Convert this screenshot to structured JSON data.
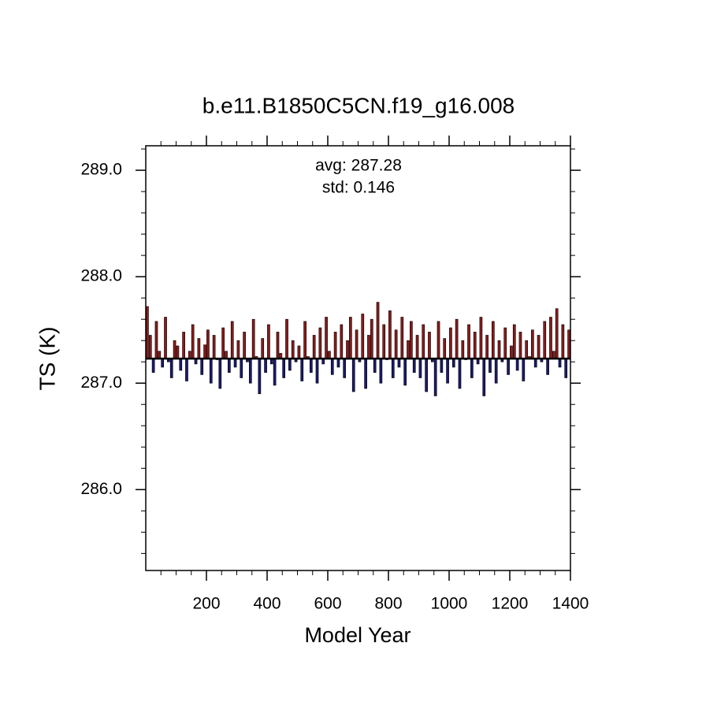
{
  "chart_data": {
    "type": "bar",
    "title": "b.e11.B1850C5CN.f19_g16.008",
    "annotations": [
      "avg: 287.28",
      "std:  0.146"
    ],
    "x_label": "Model Year",
    "y_label": "TS (K)",
    "baseline": 287.23,
    "above_color": "#8b1a1a",
    "below_color": "#1a1a6e",
    "xlim": [
      0,
      1400
    ],
    "xticks": [
      200,
      400,
      600,
      800,
      1000,
      1200,
      1400
    ],
    "xminorticks": [
      50,
      100,
      150,
      250,
      300,
      350,
      450,
      500,
      550,
      650,
      700,
      750,
      850,
      900,
      950,
      1050,
      1100,
      1150,
      1250,
      1300,
      1350
    ],
    "ylim": [
      285.24,
      289.23
    ],
    "yticks": [
      {
        "value": 286,
        "label": "286.0"
      },
      {
        "value": 287,
        "label": "287.0"
      },
      {
        "value": 288,
        "label": "288.0"
      },
      {
        "value": 289,
        "label": "289.0"
      }
    ],
    "yminorticks": [
      285.4,
      285.6,
      285.8,
      286.2,
      286.4,
      286.6,
      286.8,
      287.2,
      287.4,
      287.6,
      287.8,
      288.2,
      288.4,
      288.6,
      288.8,
      289.2
    ],
    "x": [
      5,
      15,
      25,
      35,
      45,
      55,
      65,
      75,
      85,
      95,
      105,
      115,
      125,
      135,
      145,
      155,
      165,
      175,
      185,
      195,
      205,
      215,
      225,
      235,
      245,
      255,
      265,
      275,
      285,
      295,
      305,
      315,
      325,
      335,
      345,
      355,
      365,
      375,
      385,
      395,
      405,
      415,
      425,
      435,
      445,
      455,
      465,
      475,
      485,
      495,
      505,
      515,
      525,
      535,
      545,
      555,
      565,
      575,
      585,
      595,
      605,
      615,
      625,
      635,
      645,
      655,
      665,
      675,
      685,
      695,
      705,
      715,
      725,
      735,
      745,
      755,
      765,
      775,
      785,
      795,
      805,
      815,
      825,
      835,
      845,
      855,
      865,
      875,
      885,
      895,
      905,
      915,
      925,
      935,
      945,
      955,
      965,
      975,
      985,
      995,
      1005,
      1015,
      1025,
      1035,
      1045,
      1055,
      1065,
      1075,
      1085,
      1095,
      1105,
      1115,
      1125,
      1135,
      1145,
      1155,
      1165,
      1175,
      1185,
      1195,
      1205,
      1215,
      1225,
      1235,
      1245,
      1255,
      1265,
      1275,
      1285,
      1295,
      1305,
      1315,
      1325,
      1335,
      1345,
      1355,
      1365,
      1375,
      1385,
      1395
    ],
    "values": [
      287.72,
      287.45,
      287.1,
      287.58,
      287.3,
      287.15,
      287.62,
      287.2,
      287.05,
      287.4,
      287.35,
      287.12,
      287.48,
      287.02,
      287.3,
      287.55,
      287.18,
      287.42,
      287.08,
      287.36,
      287.5,
      287.0,
      287.45,
      287.22,
      286.95,
      287.52,
      287.3,
      287.1,
      287.58,
      287.15,
      287.4,
      287.05,
      287.48,
      287.2,
      287.0,
      287.6,
      287.25,
      286.9,
      287.42,
      287.1,
      287.55,
      287.18,
      286.98,
      287.48,
      287.28,
      287.05,
      287.6,
      287.12,
      287.4,
      287.2,
      287.35,
      287.02,
      287.58,
      287.25,
      287.1,
      287.45,
      287.0,
      287.52,
      287.18,
      287.62,
      287.3,
      287.08,
      287.48,
      287.15,
      287.55,
      287.05,
      287.4,
      287.62,
      286.92,
      287.5,
      287.2,
      287.65,
      286.95,
      287.45,
      287.6,
      287.1,
      287.76,
      287.0,
      287.55,
      287.22,
      287.68,
      287.05,
      287.5,
      287.15,
      287.62,
      286.98,
      287.4,
      287.58,
      287.1,
      287.45,
      287.05,
      287.55,
      286.92,
      287.48,
      287.2,
      286.88,
      287.58,
      287.1,
      287.42,
      287.0,
      287.52,
      287.15,
      287.6,
      286.95,
      287.4,
      287.22,
      287.55,
      287.05,
      287.48,
      287.18,
      287.62,
      286.88,
      287.45,
      287.1,
      287.58,
      287.0,
      287.4,
      287.2,
      287.52,
      287.08,
      287.35,
      287.55,
      287.12,
      287.48,
      287.02,
      287.4,
      287.25,
      287.5,
      287.15,
      287.45,
      287.2,
      287.58,
      287.08,
      287.62,
      287.3,
      287.7,
      287.15,
      287.55,
      287.05,
      287.5
    ]
  }
}
